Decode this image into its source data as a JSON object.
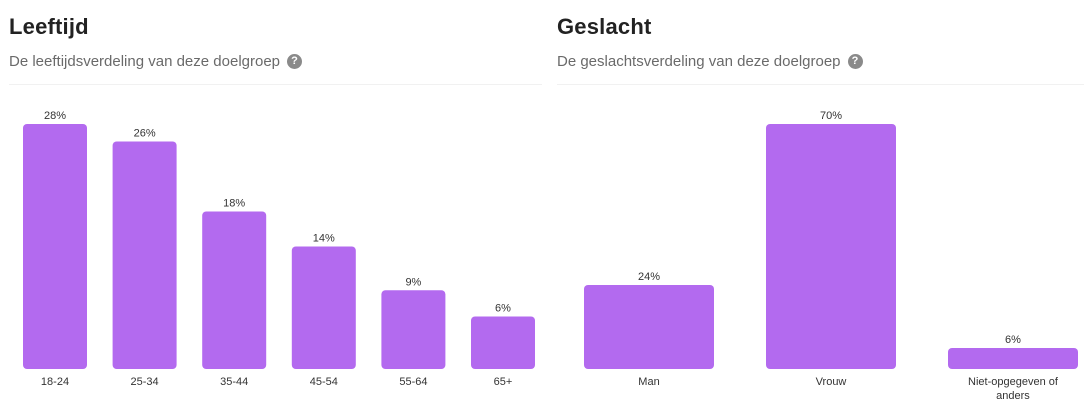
{
  "colors": {
    "bar": "#b36aef",
    "text": "#333333",
    "subtitle": "#6a6a6a"
  },
  "age": {
    "title": "Leeftijd",
    "subtitle": "De leeftijdsverdeling van deze doelgroep",
    "help_icon": "question-icon"
  },
  "gender": {
    "title": "Geslacht",
    "subtitle": "De geslachtsverdeling van deze doelgroep",
    "help_icon": "question-icon"
  },
  "chart_data": [
    {
      "type": "bar",
      "title": "Leeftijd",
      "subtitle": "De leeftijdsverdeling van deze doelgroep",
      "categories": [
        "18-24",
        "25-34",
        "35-44",
        "45-54",
        "55-64",
        "65+"
      ],
      "values": [
        28,
        26,
        18,
        14,
        9,
        6
      ],
      "value_labels": [
        "28%",
        "26%",
        "18%",
        "14%",
        "9%",
        "6%"
      ],
      "unit": "%",
      "ylim": [
        0,
        28
      ],
      "grid": false,
      "xlabel": "",
      "ylabel": ""
    },
    {
      "type": "bar",
      "title": "Geslacht",
      "subtitle": "De geslachtsverdeling van deze doelgroep",
      "categories": [
        "Man",
        "Vrouw",
        "Niet-opgegeven of anders"
      ],
      "category_label_lines": [
        [
          "Man"
        ],
        [
          "Vrouw"
        ],
        [
          "Niet-opgegeven of",
          "anders"
        ]
      ],
      "values": [
        24,
        70,
        6
      ],
      "value_labels": [
        "24%",
        "70%",
        "6%"
      ],
      "unit": "%",
      "ylim": [
        0,
        70
      ],
      "grid": false,
      "xlabel": "",
      "ylabel": ""
    }
  ]
}
